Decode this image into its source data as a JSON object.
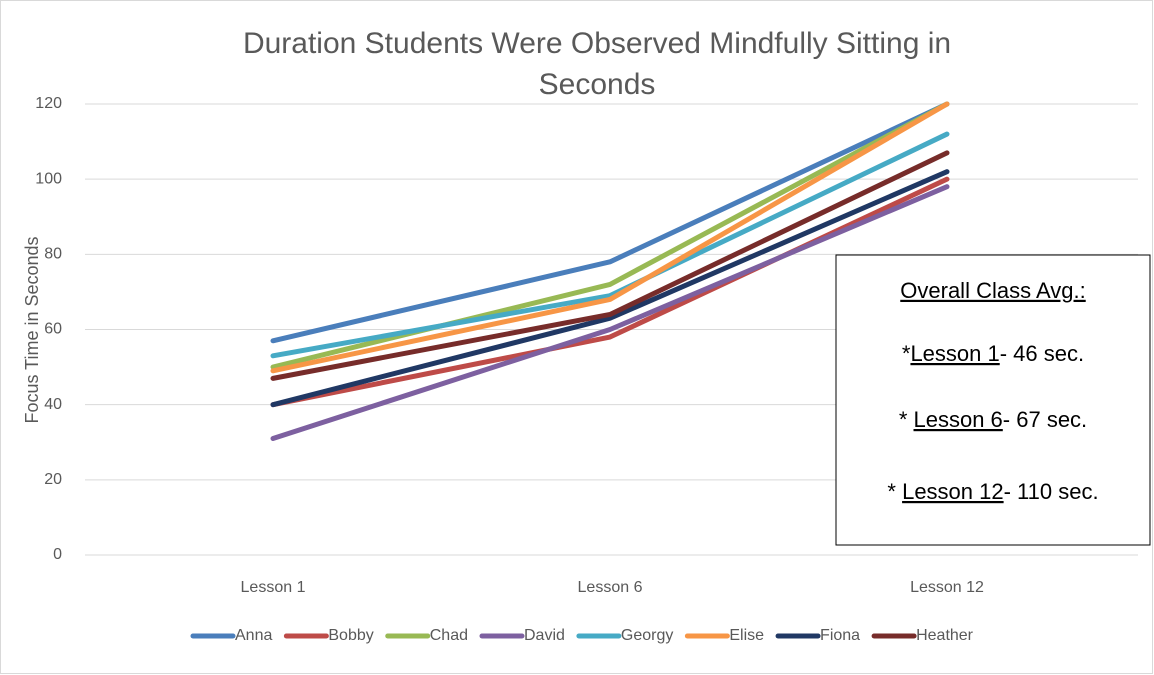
{
  "chart_data": {
    "type": "line",
    "title": "Duration Students Were Observed Mindfully Sitting in Seconds",
    "y_axis_label": "Focus Time in Seconds",
    "categories": [
      "Lesson 1",
      "Lesson 6",
      "Lesson 12"
    ],
    "series": [
      {
        "name": "Anna",
        "color": "#4a7ebb",
        "values": [
          57,
          78,
          120
        ]
      },
      {
        "name": "Bobby",
        "color": "#be4b48",
        "values": [
          40,
          58,
          100
        ]
      },
      {
        "name": "Chad",
        "color": "#98b954",
        "values": [
          50,
          72,
          120
        ]
      },
      {
        "name": "David",
        "color": "#7d60a0",
        "values": [
          31,
          60,
          98
        ]
      },
      {
        "name": "Georgy",
        "color": "#46aac5",
        "values": [
          53,
          69,
          112
        ]
      },
      {
        "name": "Elise",
        "color": "#f79646",
        "values": [
          49,
          68,
          120
        ]
      },
      {
        "name": "Fiona",
        "color": "#203864",
        "values": [
          40,
          63,
          102
        ]
      },
      {
        "name": "Heather",
        "color": "#772c2a",
        "values": [
          47,
          64,
          107
        ]
      }
    ],
    "ylim": [
      0,
      120
    ],
    "yticks": [
      0,
      20,
      40,
      60,
      80,
      100,
      120
    ],
    "grid": true,
    "legend": "bottom",
    "annotation": {
      "heading": "Overall Class Avg.:",
      "lines": [
        {
          "prefix": "*",
          "lesson": "Lesson 1",
          "rest": "- 46 sec."
        },
        {
          "prefix": "* ",
          "lesson": "Lesson 6",
          "rest": "- 67 sec."
        },
        {
          "prefix": "* ",
          "lesson": "Lesson 12",
          "rest": "- 110 sec."
        }
      ]
    }
  }
}
